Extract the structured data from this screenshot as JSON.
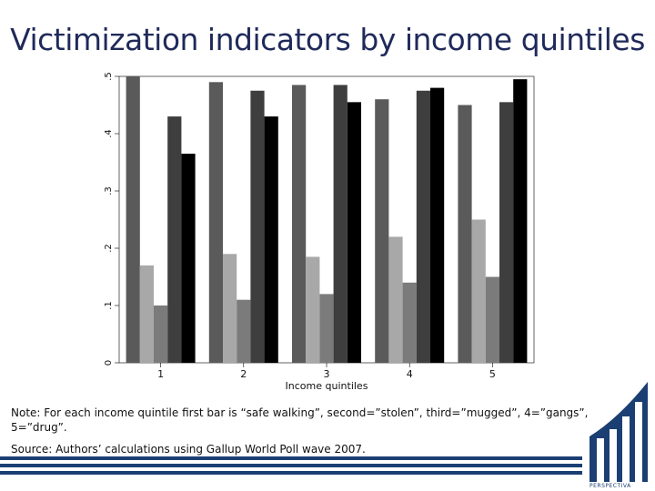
{
  "slide": {
    "title": "Victimization indicators by income quintiles",
    "note": "Note: For each income quintile first bar is “safe walking”, second=”stolen”, third=”mugged”, 4=”gangs”, 5=”drug”.",
    "source": "Source: Authors’ calculations using Gallup World Poll wave 2007.",
    "logo_text": "PERSPECTIVA"
  },
  "chart_data": {
    "type": "bar",
    "title": "",
    "xlabel": "Income quintiles",
    "ylabel": "",
    "ylim": [
      0,
      0.5
    ],
    "yticks": [
      0,
      0.1,
      0.2,
      0.3,
      0.4,
      0.5
    ],
    "ytick_labels": [
      "0",
      ".1",
      ".2",
      ".3",
      ".4",
      ".5"
    ],
    "categories": [
      "1",
      "2",
      "3",
      "4",
      "5"
    ],
    "grid": false,
    "legend": "none",
    "series": [
      {
        "values": [
          0.5,
          0.49,
          0.485,
          0.46,
          0.45
        ],
        "color": "#5a5a5a"
      },
      {
        "values": [
          0.17,
          0.19,
          0.185,
          0.22,
          0.25
        ],
        "color": "#a8a8a8"
      },
      {
        "values": [
          0.1,
          0.11,
          0.12,
          0.14,
          0.15
        ],
        "color": "#7b7b7b"
      },
      {
        "values": [
          0.43,
          0.475,
          0.485,
          0.475,
          0.455
        ],
        "color": "#3e3e3e"
      },
      {
        "values": [
          0.365,
          0.43,
          0.455,
          0.48,
          0.495
        ],
        "color": "#000000"
      }
    ]
  }
}
